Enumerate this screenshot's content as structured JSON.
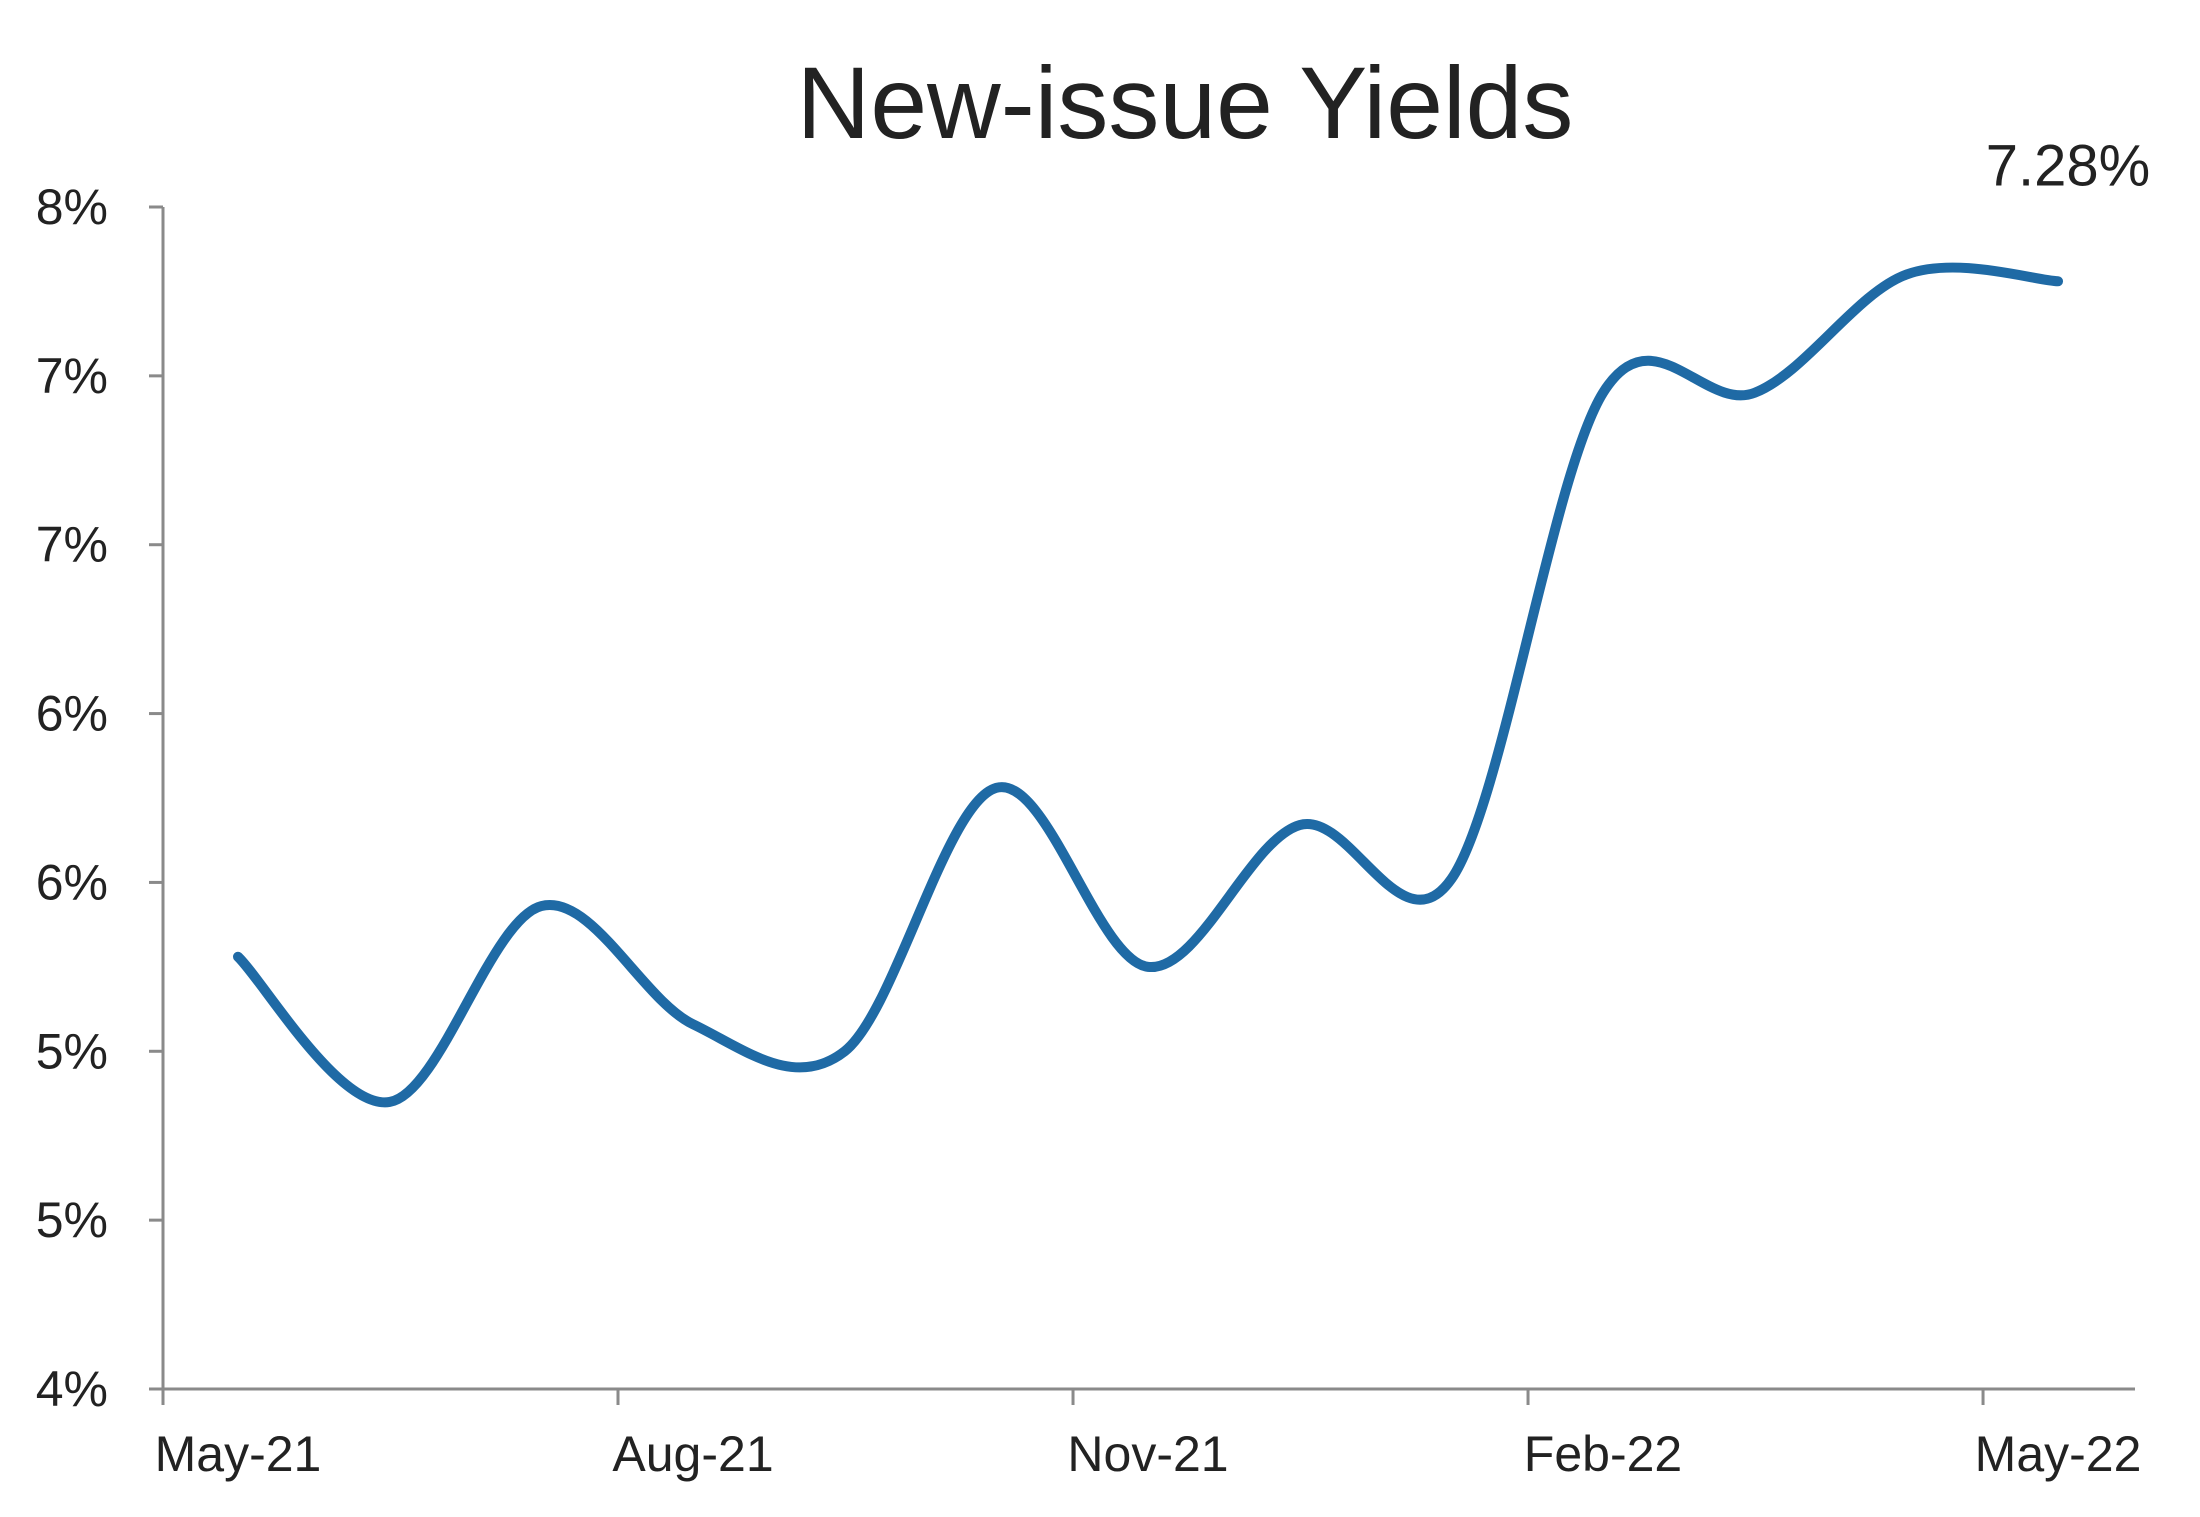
{
  "chart_data": {
    "type": "line",
    "title": "New-issue Yields",
    "xlabel": "",
    "ylabel": "",
    "x_tick_labels": [
      "May-21",
      "Aug-21",
      "Nov-21",
      "Feb-22",
      "May-22"
    ],
    "y_tick_labels": [
      "4%",
      "5%",
      "5%",
      "6%",
      "6%",
      "7%",
      "7%",
      "8%"
    ],
    "ylim": [
      4.0,
      7.5
    ],
    "grid": false,
    "legend": "none",
    "series": [
      {
        "color": "#1f6aa5",
        "x": [
          "May-21",
          "Jun-21",
          "Jul-21",
          "Aug-21",
          "Sep-21",
          "Oct-21",
          "Nov-21",
          "Dec-21",
          "Jan-22",
          "Feb-22",
          "Mar-22",
          "Apr-22",
          "May-22"
        ],
        "values": [
          5.28,
          4.85,
          5.43,
          5.08,
          5.0,
          5.78,
          5.25,
          5.67,
          5.51,
          6.95,
          6.95,
          7.3,
          7.28
        ]
      }
    ],
    "annotations": [
      {
        "text": "7.28%",
        "series": 0,
        "point": 12
      }
    ]
  }
}
